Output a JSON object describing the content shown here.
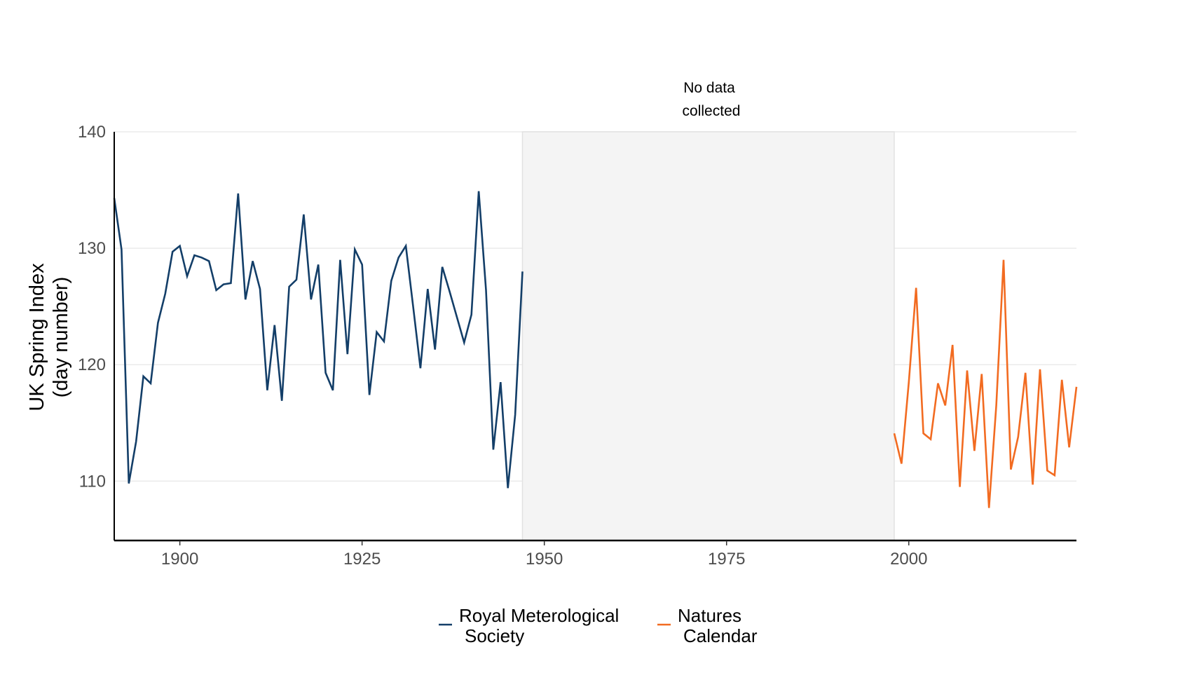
{
  "chart_data": {
    "type": "line",
    "title": "",
    "xlabel": "",
    "ylabel_line1": "UK Spring Index",
    "ylabel_line2": "(day number)",
    "xlim": [
      1891,
      2023
    ],
    "ylim": [
      104.9,
      140
    ],
    "x_ticks": [
      1900,
      1925,
      1950,
      1975,
      2000
    ],
    "y_ticks": [
      110,
      120,
      130,
      140
    ],
    "grid": "horizontal major",
    "legend_position": "bottom",
    "shaded_region": {
      "x": [
        1947,
        1998
      ],
      "color": "#f4f4f4",
      "annotation_line1": "No data",
      "annotation_line2": "collected"
    },
    "series": [
      {
        "name_line1": "Royal Meterological",
        "name_line2": "Society",
        "color": "#133e68",
        "x": [
          1891,
          1892,
          1893,
          1894,
          1895,
          1896,
          1897,
          1898,
          1899,
          1900,
          1901,
          1902,
          1903,
          1904,
          1905,
          1906,
          1907,
          1908,
          1909,
          1910,
          1911,
          1912,
          1913,
          1914,
          1915,
          1916,
          1917,
          1918,
          1919,
          1920,
          1921,
          1922,
          1923,
          1924,
          1925,
          1926,
          1927,
          1928,
          1929,
          1930,
          1931,
          1932,
          1933,
          1934,
          1935,
          1936,
          1937,
          1938,
          1939,
          1940,
          1941,
          1942,
          1943,
          1944,
          1945,
          1946,
          1947
        ],
        "y": [
          134.3,
          129.9,
          109.8,
          113.4,
          119.0,
          118.4,
          123.6,
          126.1,
          129.7,
          130.2,
          127.6,
          129.4,
          129.2,
          128.9,
          126.4,
          126.9,
          127.0,
          134.7,
          125.6,
          128.9,
          126.5,
          117.8,
          123.4,
          116.9,
          126.7,
          127.3,
          132.9,
          125.6,
          128.6,
          119.3,
          117.8,
          129.0,
          120.9,
          129.9,
          128.6,
          117.4,
          122.8,
          122.0,
          127.2,
          129.2,
          130.2,
          125.0,
          119.7,
          126.5,
          121.3,
          128.4,
          126.3,
          124.1,
          121.9,
          124.3,
          134.9,
          126.4,
          112.7,
          118.5,
          109.4,
          115.7,
          128.0
        ]
      },
      {
        "name_line1": "Natures",
        "name_line2": "Calendar",
        "color": "#f26b21",
        "x": [
          1998,
          1999,
          2000,
          2001,
          2002,
          2003,
          2004,
          2005,
          2006,
          2007,
          2008,
          2009,
          2010,
          2011,
          2012,
          2013,
          2014,
          2015,
          2016,
          2017,
          2018,
          2019,
          2020,
          2021,
          2022,
          2023
        ],
        "y": [
          114.1,
          111.5,
          118.5,
          126.6,
          114.1,
          113.6,
          118.4,
          116.5,
          121.7,
          109.5,
          119.5,
          112.6,
          119.2,
          107.7,
          116.5,
          129.0,
          111.0,
          113.8,
          119.3,
          109.7,
          119.6,
          110.9,
          110.5,
          118.7,
          112.9,
          118.1
        ]
      }
    ]
  }
}
